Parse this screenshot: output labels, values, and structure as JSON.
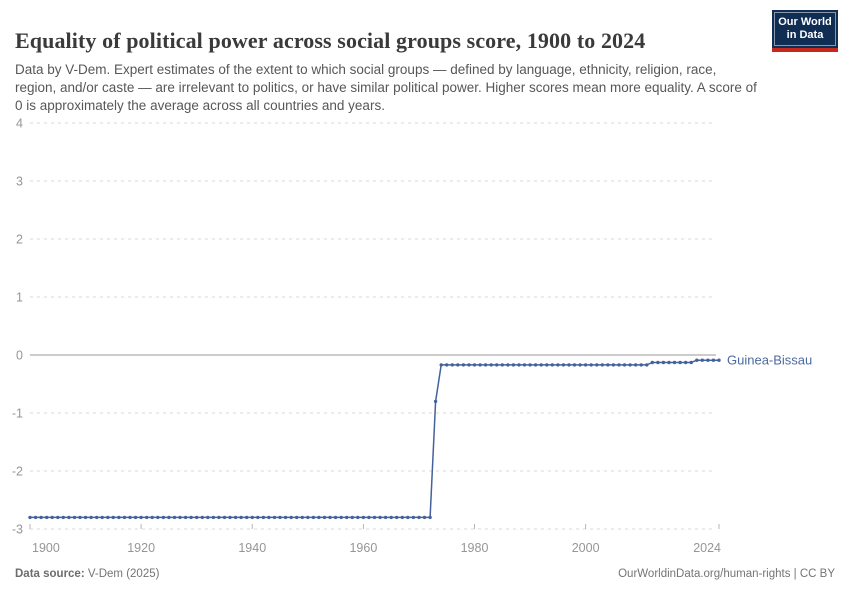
{
  "header": {
    "title": "Equality of political power across social groups score, 1900 to 2024",
    "subtitle": "Data by V-Dem. Expert estimates of the extent to which social groups — defined by language, ethnicity, religion, race, region, and/or caste — are irrelevant to politics, or have similar political power. Higher scores mean more equality. A score of 0 is approximately the average across all countries and years."
  },
  "logo": {
    "line1": "Our World",
    "line2": "in Data",
    "bg_color": "#102d54",
    "accent_color": "#c6281e"
  },
  "chart_data": {
    "type": "line",
    "title": "Equality of political power across social groups score, 1900 to 2024",
    "xlabel": "",
    "ylabel": "",
    "x_ticks": [
      1900,
      1920,
      1940,
      1960,
      1980,
      2000,
      2024
    ],
    "y_ticks": [
      4,
      3,
      2,
      1,
      0,
      -1,
      -2,
      -3
    ],
    "xlim": [
      1900,
      2024
    ],
    "ylim": [
      -3,
      4
    ],
    "grid": "dashed horizontal, solid zero line",
    "legend_position": "end-of-line label",
    "series": [
      {
        "name": "Guinea-Bissau",
        "color": "#44619b",
        "label_color": "#4d6a9f",
        "marker": "dot",
        "segments": [
          {
            "start_year": 1900,
            "end_year": 1972,
            "value": -2.8
          },
          {
            "start_year": 1973,
            "end_year": 1973,
            "value": -0.8
          },
          {
            "start_year": 1974,
            "end_year": 2011,
            "value": -0.17
          },
          {
            "start_year": 2012,
            "end_year": 2019,
            "value": -0.13
          },
          {
            "start_year": 2020,
            "end_year": 2024,
            "value": -0.09
          }
        ]
      }
    ]
  },
  "colors": {
    "gridline": "#d9d9d9",
    "zero_line": "#9a9a9a",
    "tick_text": "#969696",
    "tick_mark": "#b5b5b5"
  },
  "footer": {
    "source_label": "Data source:",
    "source_value": " V-Dem (2025)",
    "license": "OurWorldinData.org/human-rights | CC BY"
  }
}
